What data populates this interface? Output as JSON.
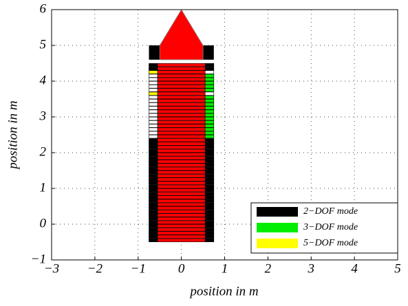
{
  "chart_data": {
    "type": "footprints",
    "xlabel": "position in m",
    "ylabel": "position in m",
    "xlim": [
      -3,
      5
    ],
    "ylim": [
      -1,
      6
    ],
    "xticks": [
      {
        "value": -3,
        "label": "−3"
      },
      {
        "value": -2,
        "label": "−2"
      },
      {
        "value": -1,
        "label": "−1"
      },
      0,
      1,
      2,
      3,
      4,
      5
    ],
    "yticks": [
      {
        "value": -1,
        "label": "−1"
      },
      0,
      1,
      2,
      3,
      4,
      5,
      6
    ],
    "grid": true,
    "legend": "lower right",
    "series": [
      {
        "name": "2−DOF mode",
        "color": "#000000",
        "x": [
          0,
          0,
          0,
          0,
          0,
          0,
          0,
          0,
          0,
          0,
          0,
          0,
          0,
          0,
          0,
          0,
          0,
          0,
          0,
          0,
          0,
          0,
          0,
          0,
          0,
          0,
          0,
          0,
          0,
          0,
          0
        ],
        "y": [
          -0.45,
          -0.35,
          -0.25,
          -0.15,
          -0.05,
          0.05,
          0.15,
          0.25,
          0.35,
          0.45,
          0.55,
          0.65,
          0.75,
          0.85,
          0.95,
          1.05,
          1.15,
          1.25,
          1.35,
          1.45,
          1.55,
          1.65,
          1.75,
          1.85,
          1.95,
          2.05,
          2.15,
          2.25,
          2.35,
          4.35,
          4.45
        ]
      },
      {
        "name": "3−DOF mode",
        "color": "#00ee00",
        "x": [
          0,
          0,
          0,
          0,
          0,
          0,
          0,
          0,
          0,
          0,
          0,
          0,
          0,
          0,
          0,
          0,
          0
        ],
        "y": [
          2.45,
          2.55,
          2.65,
          2.75,
          2.85,
          2.95,
          3.05,
          3.15,
          3.25,
          3.35,
          3.45,
          3.55,
          3.75,
          3.85,
          3.95,
          4.05,
          4.15
        ]
      },
      {
        "name": "5−DOF mode",
        "color": "#ffff00",
        "x": [
          0,
          0
        ],
        "y": [
          3.65,
          4.25
        ]
      }
    ]
  }
}
